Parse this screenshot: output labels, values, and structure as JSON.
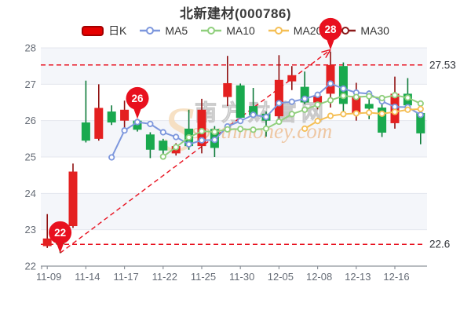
{
  "title": "北新建材(000786)",
  "legend": {
    "items": [
      {
        "slug": "daily-k",
        "label": "日K",
        "type": "rect",
        "color": "#e60000"
      },
      {
        "slug": "ma5",
        "label": "MA5",
        "type": "line",
        "color": "#7d97dd"
      },
      {
        "slug": "ma10",
        "label": "MA10",
        "type": "line",
        "color": "#90cf7d"
      },
      {
        "slug": "ma20",
        "label": "MA20",
        "type": "line",
        "color": "#f5bf55"
      },
      {
        "slug": "ma30",
        "label": "MA30",
        "type": "line",
        "color": "#8b1a1a"
      }
    ]
  },
  "watermark": {
    "initial": "S",
    "cjk": "南方财富网",
    "latin": "southmoney.com"
  },
  "colors": {
    "up": "#e42020",
    "up_wick": "#8f1010",
    "down": "#19a94e",
    "down_wick": "#0c7a38",
    "marker": "#e8101e",
    "reference": "#e8101e",
    "grid": "#e4e7ee",
    "band": "#f4f6fa",
    "axis": "#8e939b",
    "tick_text": "#666c76",
    "level_text": "#2f3238"
  },
  "chart_data": {
    "type": "candlestick",
    "title": "北新建材(000786)",
    "x_tick_labels": [
      "11-09",
      "11-14",
      "11-17",
      "11-22",
      "11-25",
      "11-30",
      "12-05",
      "12-08",
      "12-13",
      "12-16"
    ],
    "label_every": 3,
    "y_ticks": [
      22,
      23,
      24,
      25,
      26,
      27,
      28
    ],
    "ylim": [
      22,
      28.75
    ],
    "grid": true,
    "legend_position": "top",
    "candles": [
      {
        "o": 22.55,
        "c": 22.76,
        "h": 23.43,
        "l": 22.5
      },
      {
        "o": 22.7,
        "c": 22.6,
        "h": 22.76,
        "l": 22.36
      },
      {
        "o": 23.1,
        "c": 24.6,
        "h": 24.82,
        "l": 23.05
      },
      {
        "o": 25.95,
        "c": 25.45,
        "h": 27.1,
        "l": 25.4
      },
      {
        "o": 25.5,
        "c": 26.35,
        "h": 27.0,
        "l": 25.45
      },
      {
        "o": 26.25,
        "c": 25.95,
        "h": 26.42,
        "l": 25.88
      },
      {
        "o": 26.0,
        "c": 26.3,
        "h": 26.55,
        "l": 25.77
      },
      {
        "o": 26.0,
        "c": 25.75,
        "h": 26.05,
        "l": 25.7
      },
      {
        "o": 25.62,
        "c": 25.2,
        "h": 25.68,
        "l": 24.97
      },
      {
        "o": 25.45,
        "c": 25.18,
        "h": 25.5,
        "l": 25.08
      },
      {
        "o": 25.1,
        "c": 25.3,
        "h": 25.38,
        "l": 25.04
      },
      {
        "o": 25.78,
        "c": 25.3,
        "h": 26.3,
        "l": 25.2
      },
      {
        "o": 25.3,
        "c": 26.3,
        "h": 26.6,
        "l": 25.1
      },
      {
        "o": 25.77,
        "c": 25.25,
        "h": 25.85,
        "l": 25.0
      },
      {
        "o": 26.65,
        "c": 27.03,
        "h": 27.78,
        "l": 26.4
      },
      {
        "o": 26.97,
        "c": 26.08,
        "h": 27.02,
        "l": 26.04
      },
      {
        "o": 26.4,
        "c": 26.15,
        "h": 26.9,
        "l": 26.1
      },
      {
        "o": 26.19,
        "c": 26.0,
        "h": 26.25,
        "l": 25.56
      },
      {
        "o": 26.12,
        "c": 27.12,
        "h": 27.8,
        "l": 26.04
      },
      {
        "o": 27.08,
        "c": 27.25,
        "h": 27.5,
        "l": 26.84
      },
      {
        "o": 26.93,
        "c": 26.5,
        "h": 27.35,
        "l": 26.45
      },
      {
        "o": 26.5,
        "c": 26.68,
        "h": 26.78,
        "l": 26.31
      },
      {
        "o": 26.74,
        "c": 27.53,
        "h": 27.9,
        "l": 26.36
      },
      {
        "o": 27.5,
        "c": 26.46,
        "h": 27.6,
        "l": 26.2
      },
      {
        "o": 26.18,
        "c": 26.68,
        "h": 27.04,
        "l": 26.0
      },
      {
        "o": 26.46,
        "c": 26.33,
        "h": 26.83,
        "l": 26.04
      },
      {
        "o": 26.36,
        "c": 25.67,
        "h": 26.5,
        "l": 25.55
      },
      {
        "o": 25.93,
        "c": 26.74,
        "h": 27.21,
        "l": 25.78
      },
      {
        "o": 26.74,
        "c": 26.42,
        "h": 27.17,
        "l": 26.29
      },
      {
        "o": 26.21,
        "c": 25.65,
        "h": 26.31,
        "l": 25.35
      }
    ],
    "series": [
      {
        "name": "MA5",
        "color": "#7d97dd",
        "start_index": 5,
        "values": [
          24.99,
          25.73,
          25.96,
          25.91,
          25.68,
          25.55,
          25.35,
          25.46,
          25.47,
          25.84,
          25.99,
          26.16,
          26.1,
          26.48,
          26.52,
          26.6,
          26.71,
          27.02,
          26.88,
          26.77,
          26.74,
          26.53,
          26.38,
          26.37,
          26.16
        ]
      },
      {
        "name": "MA10",
        "color": "#90cf7d",
        "start_index": 9,
        "values": [
          25.01,
          25.27,
          25.54,
          25.71,
          25.69,
          25.76,
          25.77,
          25.75,
          25.78,
          25.97,
          26.18,
          26.3,
          26.44,
          26.56,
          26.68,
          26.65,
          26.67,
          26.62,
          26.7,
          26.63,
          26.47
        ]
      },
      {
        "name": "MA20",
        "color": "#f5bf55",
        "start_index": 20,
        "values": [
          25.78,
          25.99,
          26.13,
          26.18,
          26.2,
          26.22,
          26.19,
          26.24,
          26.3,
          26.32
        ]
      },
      {
        "name": "MA30",
        "color": "#8b1a1a",
        "start_index": 30,
        "values": []
      }
    ],
    "markers": [
      {
        "label": "22",
        "candle_index": 1,
        "value": 22.36
      },
      {
        "label": "26",
        "candle_index": 7,
        "value": 26.05
      },
      {
        "label": "28",
        "candle_index": 22,
        "value": 27.95
      }
    ],
    "reference_lines": [
      {
        "label": "27.53",
        "value": 27.53
      },
      {
        "label": "22.6",
        "value": 22.6
      }
    ],
    "trendline": {
      "from": {
        "candle_index": 1,
        "value": 22.36
      },
      "to": {
        "candle_index": 22,
        "value": 27.95
      }
    }
  }
}
